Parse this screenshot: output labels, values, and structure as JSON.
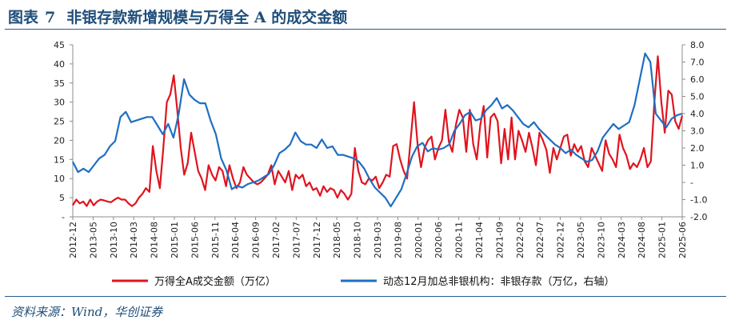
{
  "figure": {
    "label": "图表",
    "number": "7",
    "title": "非银存款新增规模与万得全 A 的成交金额",
    "source": "资料来源：Wind，华创证券"
  },
  "colors": {
    "red": "#e0141e",
    "blue": "#1f6fc1",
    "axis": "#8c8c8c"
  },
  "chart_data": {
    "type": "line",
    "title": "",
    "x_tick_labels": [
      "2012-12",
      "2013-05",
      "2013-10",
      "2014-03",
      "2014-08",
      "2015-01",
      "2015-06",
      "2015-11",
      "2016-04",
      "2016-09",
      "2017-02",
      "2017-07",
      "2017-12",
      "2018-05",
      "2018-10",
      "2019-03",
      "2019-08",
      "2020-01",
      "2020-06",
      "2020-11",
      "2021-04",
      "2021-09",
      "2022-02",
      "2022-07",
      "2022-12",
      "2023-05",
      "2023-10",
      "2024-03",
      "2024-08",
      "2025-01",
      "2025-06"
    ],
    "y_left": {
      "min": 0,
      "max": 45,
      "ticks": [
        "-",
        "5",
        "10",
        "15",
        "20",
        "25",
        "30",
        "35",
        "40",
        "45"
      ]
    },
    "y_right": {
      "min": -2,
      "max": 8,
      "ticks": [
        "-2.0",
        "-1.0",
        "-",
        "1.0",
        "2.0",
        "3.0",
        "4.0",
        "5.0",
        "6.0",
        "7.0",
        "8.0"
      ]
    },
    "series": [
      {
        "name": "万得全A成交金额（万亿）",
        "axis": "left",
        "points": [
          [
            0,
            3
          ],
          [
            1,
            4.5
          ],
          [
            2,
            3.5
          ],
          [
            3,
            4
          ],
          [
            4,
            2.8
          ],
          [
            5,
            4.5
          ],
          [
            6,
            3
          ],
          [
            7,
            4
          ],
          [
            8,
            4.5
          ],
          [
            9,
            4.3
          ],
          [
            10,
            4
          ],
          [
            11,
            3.8
          ],
          [
            12,
            4.5
          ],
          [
            13,
            5
          ],
          [
            14,
            4.5
          ],
          [
            15,
            4.5
          ],
          [
            16,
            3.5
          ],
          [
            17,
            2.8
          ],
          [
            18,
            3.5
          ],
          [
            19,
            5
          ],
          [
            20,
            6
          ],
          [
            21,
            7.5
          ],
          [
            22,
            6.5
          ],
          [
            23,
            18.5
          ],
          [
            24,
            12
          ],
          [
            25,
            7.5
          ],
          [
            26,
            18
          ],
          [
            27,
            30
          ],
          [
            28,
            32
          ],
          [
            29,
            37
          ],
          [
            30,
            28
          ],
          [
            31,
            18
          ],
          [
            32,
            11
          ],
          [
            33,
            14
          ],
          [
            34,
            22
          ],
          [
            35,
            17
          ],
          [
            36,
            12
          ],
          [
            37,
            10
          ],
          [
            38,
            7
          ],
          [
            39,
            13.5
          ],
          [
            40,
            11
          ],
          [
            41,
            9.5
          ],
          [
            42,
            13
          ],
          [
            43,
            12
          ],
          [
            44,
            8
          ],
          [
            45,
            13.5
          ],
          [
            46,
            10
          ],
          [
            47,
            7.5
          ],
          [
            48,
            9
          ],
          [
            49,
            13
          ],
          [
            50,
            11
          ],
          [
            51,
            10
          ],
          [
            52,
            9
          ],
          [
            53,
            8.5
          ],
          [
            54,
            9
          ],
          [
            55,
            10
          ],
          [
            56,
            11
          ],
          [
            57,
            13.5
          ],
          [
            58,
            8.5
          ],
          [
            59,
            12
          ],
          [
            60,
            10.5
          ],
          [
            61,
            9
          ],
          [
            62,
            12
          ],
          [
            63,
            7
          ],
          [
            64,
            11
          ],
          [
            65,
            10
          ],
          [
            66,
            11
          ],
          [
            67,
            8
          ],
          [
            68,
            9
          ],
          [
            69,
            7
          ],
          [
            70,
            7.5
          ],
          [
            71,
            5.5
          ],
          [
            72,
            8
          ],
          [
            73,
            6.5
          ],
          [
            74,
            7.5
          ],
          [
            75,
            7
          ],
          [
            76,
            5
          ],
          [
            77,
            7
          ],
          [
            78,
            6
          ],
          [
            79,
            4.5
          ],
          [
            80,
            6
          ],
          [
            81,
            18
          ],
          [
            82,
            12
          ],
          [
            83,
            9
          ],
          [
            84,
            8.5
          ],
          [
            85,
            10
          ],
          [
            86,
            9.5
          ],
          [
            87,
            10.5
          ],
          [
            88,
            7.5
          ],
          [
            89,
            9
          ],
          [
            90,
            11
          ],
          [
            91,
            10.5
          ],
          [
            92,
            18.5
          ],
          [
            93,
            19
          ],
          [
            94,
            15
          ],
          [
            95,
            12
          ],
          [
            96,
            10
          ],
          [
            97,
            20
          ],
          [
            98,
            30
          ],
          [
            99,
            19
          ],
          [
            100,
            13
          ],
          [
            101,
            18
          ],
          [
            102,
            20
          ],
          [
            103,
            21
          ],
          [
            104,
            15
          ],
          [
            105,
            18
          ],
          [
            106,
            20
          ],
          [
            107,
            28
          ],
          [
            108,
            19.5
          ],
          [
            109,
            17
          ],
          [
            110,
            24
          ],
          [
            111,
            28
          ],
          [
            112,
            26
          ],
          [
            113,
            17
          ],
          [
            114,
            28
          ],
          [
            115,
            19
          ],
          [
            116,
            15
          ],
          [
            117,
            24
          ],
          [
            118,
            29
          ],
          [
            119,
            15.5
          ],
          [
            120,
            26
          ],
          [
            121,
            27
          ],
          [
            122,
            25
          ],
          [
            123,
            14
          ],
          [
            124,
            23
          ],
          [
            125,
            15
          ],
          [
            126,
            26
          ],
          [
            127,
            15
          ],
          [
            128,
            22.5
          ],
          [
            129,
            20
          ],
          [
            130,
            17
          ],
          [
            131,
            22
          ],
          [
            132,
            18
          ],
          [
            133,
            13.5
          ],
          [
            134,
            22
          ],
          [
            135,
            20
          ],
          [
            136,
            17.5
          ],
          [
            137,
            11.5
          ],
          [
            138,
            18
          ],
          [
            139,
            15
          ],
          [
            140,
            18
          ],
          [
            141,
            21
          ],
          [
            142,
            21.5
          ],
          [
            143,
            16
          ],
          [
            144,
            19
          ],
          [
            145,
            17
          ],
          [
            146,
            18.5
          ],
          [
            147,
            14.5
          ],
          [
            148,
            13
          ],
          [
            149,
            18
          ],
          [
            150,
            16
          ],
          [
            151,
            14
          ],
          [
            152,
            12
          ],
          [
            153,
            20
          ],
          [
            154,
            16.5
          ],
          [
            155,
            15
          ],
          [
            156,
            13
          ],
          [
            157,
            21.5
          ],
          [
            158,
            18
          ],
          [
            159,
            16
          ],
          [
            160,
            12.5
          ],
          [
            161,
            14
          ],
          [
            162,
            13
          ],
          [
            163,
            15
          ],
          [
            164,
            18
          ],
          [
            165,
            13
          ],
          [
            166,
            14.5
          ],
          [
            167,
            30
          ],
          [
            168,
            42
          ],
          [
            169,
            30
          ],
          [
            170,
            22
          ],
          [
            171,
            33
          ],
          [
            172,
            32
          ],
          [
            173,
            25
          ],
          [
            174,
            23
          ],
          [
            175,
            26.5
          ]
        ]
      },
      {
        "name": "动态12月加总非银机构：非银存款（万亿，右轴）",
        "axis": "right",
        "points": [
          [
            0,
            1.2
          ],
          [
            2,
            0.6
          ],
          [
            4,
            0.8
          ],
          [
            6,
            0.6
          ],
          [
            8,
            1.0
          ],
          [
            10,
            1.4
          ],
          [
            12,
            1.6
          ],
          [
            14,
            2.1
          ],
          [
            16,
            2.4
          ],
          [
            18,
            3.8
          ],
          [
            20,
            4.1
          ],
          [
            22,
            3.5
          ],
          [
            24,
            3.6
          ],
          [
            26,
            3.7
          ],
          [
            28,
            3.8
          ],
          [
            30,
            3.8
          ],
          [
            32,
            3.3
          ],
          [
            34,
            2.8
          ],
          [
            36,
            3.4
          ],
          [
            38,
            2.6
          ],
          [
            40,
            4.0
          ],
          [
            42,
            6.0
          ],
          [
            44,
            5.1
          ],
          [
            46,
            4.8
          ],
          [
            48,
            4.6
          ],
          [
            50,
            4.6
          ],
          [
            52,
            3.6
          ],
          [
            54,
            2.8
          ],
          [
            56,
            1.4
          ],
          [
            58,
            0.7
          ],
          [
            60,
            -0.4
          ],
          [
            62,
            -0.2
          ],
          [
            64,
            -0.3
          ],
          [
            66,
            -0.1
          ],
          [
            68,
            0.0
          ],
          [
            70,
            0.1
          ],
          [
            72,
            0.3
          ],
          [
            74,
            0.5
          ],
          [
            76,
            1.0
          ],
          [
            78,
            1.7
          ],
          [
            80,
            1.9
          ],
          [
            82,
            2.2
          ],
          [
            84,
            2.9
          ],
          [
            86,
            2.4
          ],
          [
            88,
            2.2
          ],
          [
            90,
            2.2
          ],
          [
            92,
            2.0
          ],
          [
            94,
            2.5
          ],
          [
            96,
            2.0
          ],
          [
            98,
            2.1
          ],
          [
            100,
            1.6
          ],
          [
            102,
            1.6
          ],
          [
            104,
            1.5
          ],
          [
            106,
            1.4
          ],
          [
            108,
            1.2
          ],
          [
            110,
            0.8
          ],
          [
            112,
            0.2
          ],
          [
            114,
            -0.3
          ],
          [
            116,
            -0.6
          ],
          [
            118,
            -0.9
          ],
          [
            120,
            -1.4
          ],
          [
            122,
            -0.9
          ],
          [
            124,
            -0.4
          ],
          [
            126,
            0.5
          ],
          [
            128,
            1.5
          ],
          [
            130,
            2.1
          ],
          [
            132,
            2.3
          ],
          [
            134,
            1.8
          ],
          [
            136,
            2.0
          ],
          [
            138,
            1.9
          ],
          [
            140,
            2.0
          ],
          [
            142,
            2.2
          ],
          [
            144,
            3.0
          ],
          [
            146,
            3.4
          ],
          [
            148,
            3.9
          ],
          [
            150,
            4.1
          ],
          [
            152,
            3.6
          ],
          [
            154,
            3.7
          ],
          [
            156,
            4.2
          ],
          [
            158,
            4.5
          ],
          [
            160,
            4.9
          ],
          [
            162,
            4.3
          ],
          [
            164,
            4.5
          ],
          [
            166,
            4.2
          ],
          [
            168,
            3.8
          ],
          [
            170,
            3.4
          ],
          [
            172,
            3.2
          ],
          [
            174,
            3.5
          ],
          [
            176,
            3.1
          ],
          [
            178,
            2.8
          ],
          [
            180,
            2.5
          ],
          [
            182,
            2.2
          ],
          [
            184,
            2.0
          ],
          [
            186,
            1.7
          ],
          [
            188,
            1.9
          ],
          [
            190,
            1.6
          ],
          [
            192,
            1.4
          ],
          [
            194,
            1.2
          ],
          [
            196,
            1.3
          ],
          [
            198,
            1.8
          ],
          [
            200,
            2.6
          ],
          [
            202,
            3.0
          ],
          [
            204,
            3.4
          ],
          [
            206,
            3.1
          ],
          [
            208,
            3.3
          ],
          [
            210,
            3.5
          ],
          [
            212,
            4.5
          ],
          [
            214,
            6.0
          ],
          [
            216,
            7.5
          ],
          [
            218,
            7.0
          ],
          [
            220,
            4.0
          ],
          [
            222,
            3.6
          ],
          [
            224,
            3.2
          ],
          [
            226,
            3.7
          ],
          [
            228,
            3.9
          ],
          [
            230,
            4.0
          ]
        ]
      }
    ],
    "legend": {
      "position": "bottom"
    },
    "grid": false
  }
}
